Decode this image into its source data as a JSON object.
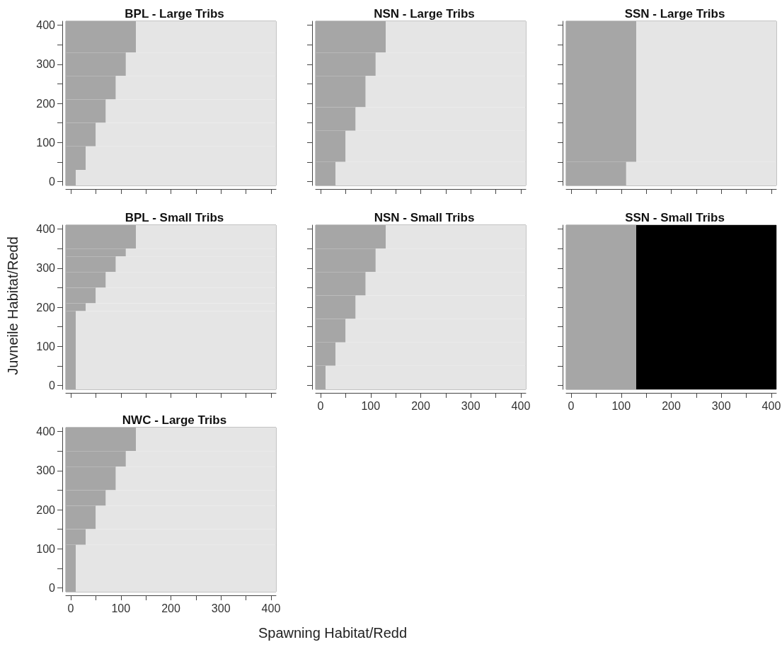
{
  "chart_data": [
    {
      "type": "histogram",
      "title": "BPL - Large Tribs",
      "orientation": "horizontal",
      "tick_labels": "y",
      "bins": [
        -10,
        30,
        90,
        150,
        210,
        270,
        330,
        410
      ],
      "xlim": [
        -10,
        410
      ],
      "ylim": [
        -10,
        410
      ],
      "xticks": [
        0,
        {
          "value": 50,
          "label": null
        },
        100,
        {
          "value": 150,
          "label": null
        },
        200,
        {
          "value": 250,
          "label": null
        },
        300,
        {
          "value": 350,
          "label": null
        },
        400
      ],
      "yticks": [
        0,
        {
          "value": 50,
          "label": null
        },
        100,
        {
          "value": 150,
          "label": null
        },
        200,
        {
          "value": 250,
          "label": null
        },
        300,
        {
          "value": 350,
          "label": null
        },
        400
      ],
      "series": [
        {
          "color": "#a6a6a6",
          "base": [
            -10,
            -10,
            -10,
            -10,
            -10,
            -10,
            -10
          ],
          "values": [
            20,
            40,
            60,
            80,
            100,
            120,
            140
          ]
        },
        {
          "color": "#e5e5e5",
          "base": [
            10,
            30,
            50,
            70,
            90,
            110,
            130
          ],
          "values": [
            400,
            380,
            360,
            340,
            320,
            300,
            280
          ]
        }
      ]
    },
    {
      "type": "histogram",
      "title": "NSN - Large Tribs",
      "orientation": "horizontal",
      "tick_labels": false,
      "bins": [
        -10,
        50,
        130,
        190,
        270,
        330,
        410
      ],
      "xlim": [
        -10,
        410
      ],
      "ylim": [
        -10,
        410
      ],
      "xticks": [
        0,
        {
          "value": 50,
          "label": null
        },
        100,
        {
          "value": 150,
          "label": null
        },
        200,
        {
          "value": 250,
          "label": null
        },
        300,
        {
          "value": 350,
          "label": null
        },
        400
      ],
      "yticks": [
        0,
        {
          "value": 50,
          "label": null
        },
        100,
        {
          "value": 150,
          "label": null
        },
        200,
        {
          "value": 250,
          "label": null
        },
        300,
        {
          "value": 350,
          "label": null
        },
        400
      ],
      "series": [
        {
          "color": "#a6a6a6",
          "base": [
            -10,
            -10,
            -10,
            -10,
            -10,
            -10
          ],
          "values": [
            40,
            60,
            80,
            100,
            120,
            140
          ]
        },
        {
          "color": "#e5e5e5",
          "base": [
            30,
            50,
            70,
            90,
            110,
            130
          ],
          "values": [
            380,
            360,
            340,
            320,
            300,
            280
          ]
        }
      ]
    },
    {
      "type": "histogram",
      "title": "SSN - Large Tribs",
      "orientation": "horizontal",
      "tick_labels": false,
      "bins": [
        -10,
        50,
        410
      ],
      "xlim": [
        -10,
        410
      ],
      "ylim": [
        -10,
        410
      ],
      "xticks": [
        0,
        {
          "value": 50,
          "label": null
        },
        100,
        {
          "value": 150,
          "label": null
        },
        200,
        {
          "value": 250,
          "label": null
        },
        300,
        {
          "value": 350,
          "label": null
        },
        400
      ],
      "yticks": [
        0,
        {
          "value": 50,
          "label": null
        },
        100,
        {
          "value": 150,
          "label": null
        },
        200,
        {
          "value": 250,
          "label": null
        },
        300,
        {
          "value": 350,
          "label": null
        },
        400
      ],
      "series": [
        {
          "color": "#a6a6a6",
          "base": [
            -10,
            -10
          ],
          "values": [
            120,
            140
          ]
        },
        {
          "color": "#e5e5e5",
          "base": [
            110,
            130
          ],
          "values": [
            300,
            280
          ]
        }
      ]
    },
    {
      "type": "histogram",
      "title": "BPL - Small Tribs",
      "ylabel": "Juvneile Habitat/Redd",
      "orientation": "horizontal",
      "tick_labels": "y",
      "bins": [
        -10,
        190,
        210,
        250,
        290,
        330,
        350,
        410
      ],
      "xlim": [
        -10,
        410
      ],
      "ylim": [
        -10,
        410
      ],
      "xticks": [
        0,
        {
          "value": 50,
          "label": null
        },
        100,
        {
          "value": 150,
          "label": null
        },
        200,
        {
          "value": 250,
          "label": null
        },
        300,
        {
          "value": 350,
          "label": null
        },
        400
      ],
      "yticks": [
        0,
        {
          "value": 50,
          "label": null
        },
        100,
        {
          "value": 150,
          "label": null
        },
        200,
        {
          "value": 250,
          "label": null
        },
        300,
        {
          "value": 350,
          "label": null
        },
        400
      ],
      "series": [
        {
          "color": "#a6a6a6",
          "base": [
            -10,
            -10,
            -10,
            -10,
            -10,
            -10,
            -10
          ],
          "values": [
            20,
            40,
            60,
            80,
            100,
            120,
            140
          ]
        },
        {
          "color": "#e5e5e5",
          "base": [
            10,
            30,
            50,
            70,
            90,
            110,
            130
          ],
          "values": [
            400,
            380,
            360,
            340,
            320,
            300,
            280
          ]
        }
      ]
    },
    {
      "type": "histogram",
      "title": "NSN - Small Tribs",
      "orientation": "horizontal",
      "tick_labels": "x",
      "bins": [
        -10,
        50,
        110,
        170,
        230,
        290,
        350,
        410
      ],
      "xlim": [
        -10,
        410
      ],
      "ylim": [
        -10,
        410
      ],
      "xticks": [
        0,
        {
          "value": 50,
          "label": null
        },
        100,
        {
          "value": 150,
          "label": null
        },
        200,
        {
          "value": 250,
          "label": null
        },
        300,
        {
          "value": 350,
          "label": null
        },
        400
      ],
      "yticks": [
        0,
        {
          "value": 50,
          "label": null
        },
        100,
        {
          "value": 150,
          "label": null
        },
        200,
        {
          "value": 250,
          "label": null
        },
        300,
        {
          "value": 350,
          "label": null
        },
        400
      ],
      "series": [
        {
          "color": "#a6a6a6",
          "base": [
            -10,
            -10,
            -10,
            -10,
            -10,
            -10,
            -10
          ],
          "values": [
            20,
            40,
            60,
            80,
            100,
            120,
            140
          ]
        },
        {
          "color": "#e5e5e5",
          "base": [
            10,
            30,
            50,
            70,
            90,
            110,
            130
          ],
          "values": [
            400,
            380,
            360,
            340,
            320,
            300,
            280
          ]
        }
      ]
    },
    {
      "type": "histogram",
      "title": "SSN - Small Tribs",
      "orientation": "horizontal",
      "tick_labels": "x",
      "bins": [
        -10,
        410
      ],
      "xlim": [
        -10,
        410
      ],
      "ylim": [
        -10,
        410
      ],
      "xticks": [
        0,
        {
          "value": 50,
          "label": null
        },
        100,
        {
          "value": 150,
          "label": null
        },
        200,
        {
          "value": 250,
          "label": null
        },
        300,
        {
          "value": 350,
          "label": null
        },
        400
      ],
      "yticks": [
        0,
        {
          "value": 50,
          "label": null
        },
        100,
        {
          "value": 150,
          "label": null
        },
        200,
        {
          "value": 250,
          "label": null
        },
        300,
        {
          "value": 350,
          "label": null
        },
        400
      ],
      "series": [
        {
          "color": "#a6a6a6",
          "base": [
            -10
          ],
          "values": [
            140
          ]
        },
        {
          "color": "#000000",
          "base": [
            130
          ],
          "values": [
            280
          ]
        }
      ]
    },
    {
      "type": "histogram",
      "title": "NWC - Large Tribs",
      "xlabel": "Spawning Habitat/Redd",
      "orientation": "horizontal",
      "bins": [
        -10,
        110,
        150,
        210,
        250,
        310,
        350,
        410
      ],
      "xlim": [
        -10,
        410
      ],
      "ylim": [
        -10,
        410
      ],
      "xticks": [
        0,
        {
          "value": 50,
          "label": null
        },
        100,
        {
          "value": 150,
          "label": null
        },
        200,
        {
          "value": 250,
          "label": null
        },
        300,
        {
          "value": 350,
          "label": null
        },
        400
      ],
      "yticks": [
        0,
        {
          "value": 50,
          "label": null
        },
        100,
        {
          "value": 150,
          "label": null
        },
        200,
        {
          "value": 250,
          "label": null
        },
        300,
        {
          "value": 350,
          "label": null
        },
        400
      ],
      "series": [
        {
          "color": "#a6a6a6",
          "base": [
            -10,
            -10,
            -10,
            -10,
            -10,
            -10,
            -10
          ],
          "values": [
            20,
            40,
            60,
            80,
            100,
            120,
            140
          ]
        },
        {
          "color": "#e5e5e5",
          "base": [
            10,
            30,
            50,
            70,
            90,
            110,
            130
          ],
          "values": [
            400,
            380,
            360,
            340,
            320,
            300,
            280
          ]
        }
      ]
    }
  ]
}
